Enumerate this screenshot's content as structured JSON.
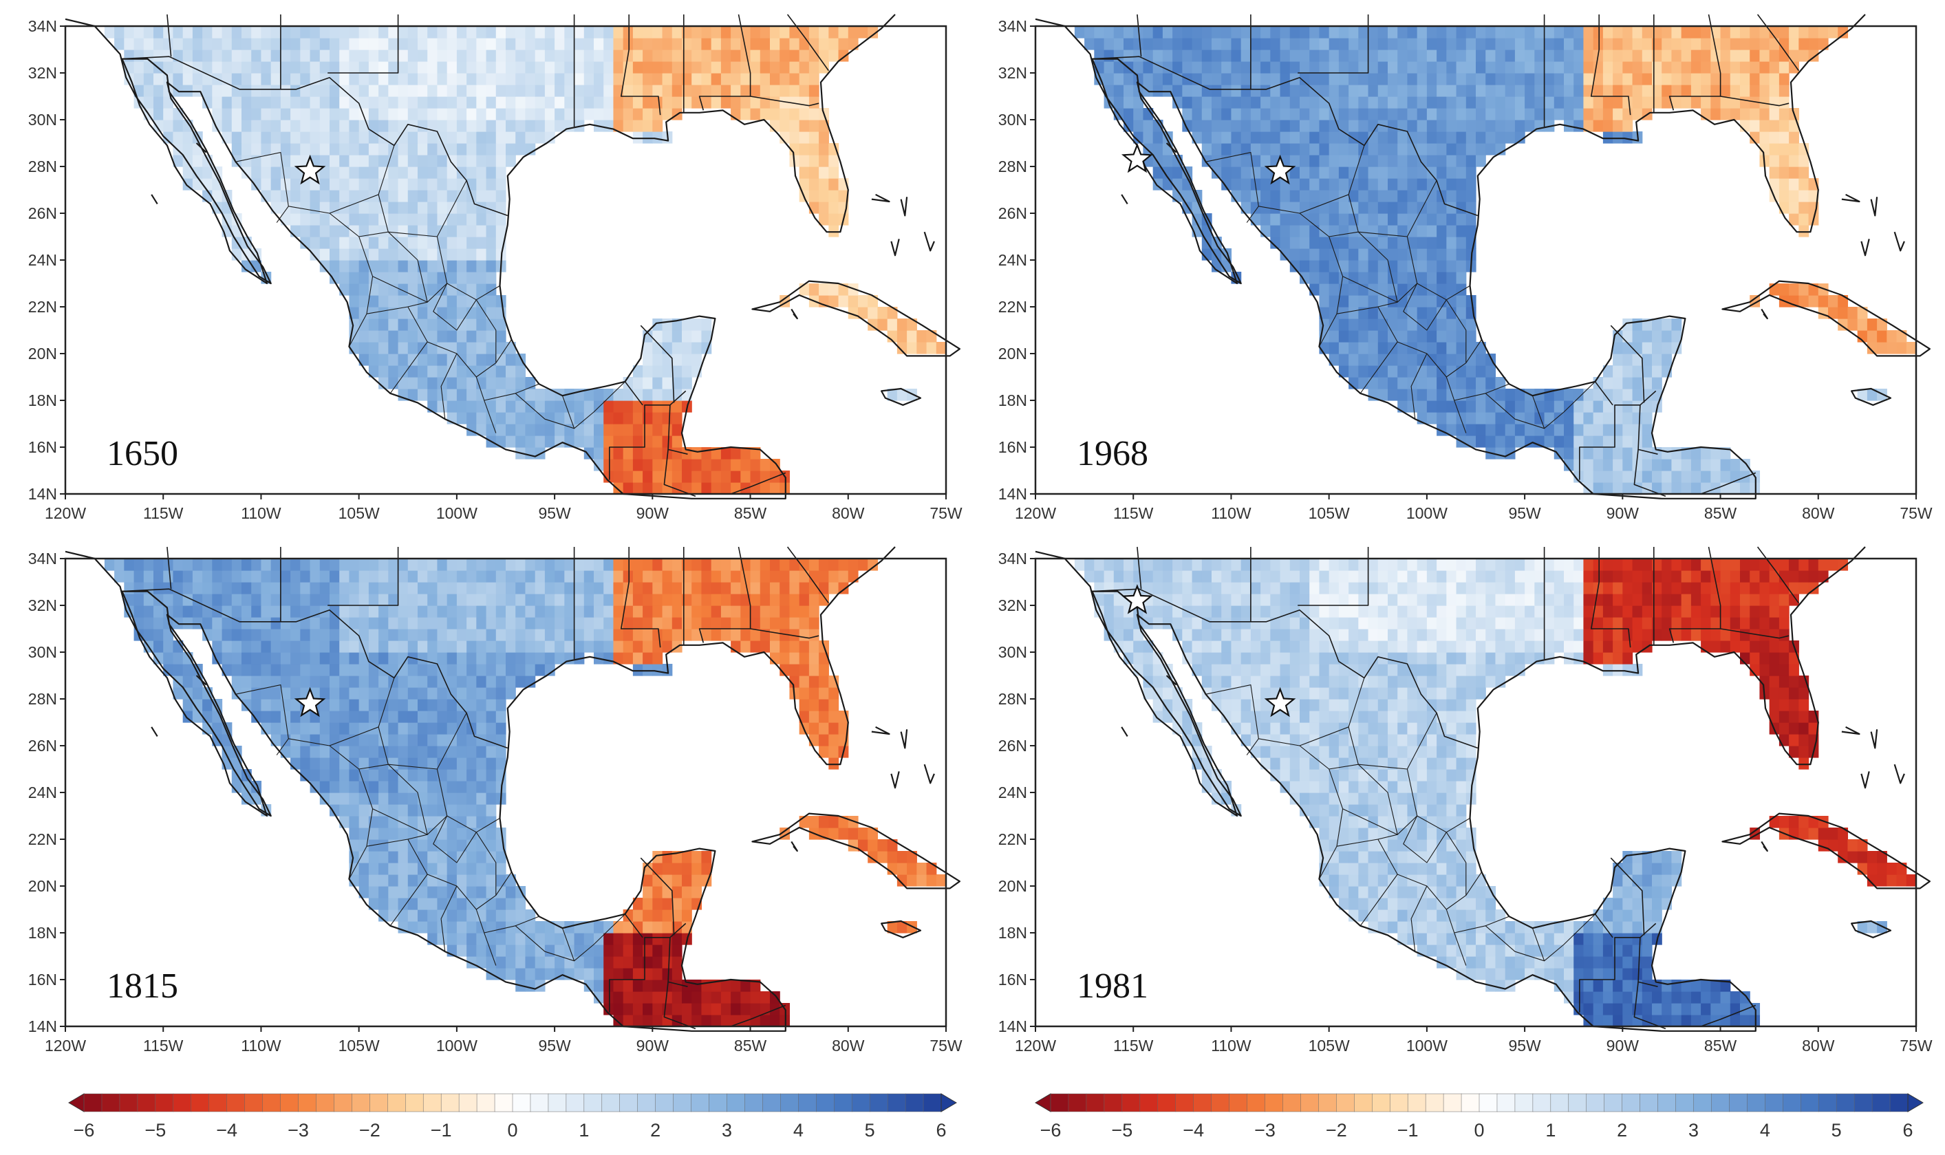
{
  "figure": {
    "description_type": "four-panel anomaly maps",
    "panels": [
      {
        "id": "p1650",
        "year": "1650",
        "anomaly": {
          "us_east": -2.0,
          "florida": -1.5,
          "mexico_north": 1.5,
          "mexico_center": 2.8,
          "yucatan": 1.5,
          "central_america": -3.5,
          "cuba": -1.5,
          "texas": 1.0
        }
      },
      {
        "id": "p1968",
        "year": "1968",
        "anomaly": {
          "us_east": -2.0,
          "florida": -1.5,
          "mexico_north": 3.8,
          "mexico_center": 4.0,
          "yucatan": 2.0,
          "central_america": 2.2,
          "cuba": -2.5,
          "texas": 3.5
        }
      },
      {
        "id": "p1815",
        "year": "1815",
        "anomaly": {
          "us_east": -3.0,
          "florida": -3.0,
          "mexico_north": 3.5,
          "mexico_center": 3.0,
          "yucatan": -3.0,
          "central_america": -5.5,
          "cuba": -3.0,
          "texas": 2.5
        }
      },
      {
        "id": "p1981",
        "year": "1981",
        "anomaly": {
          "us_east": -4.5,
          "florida": -5.0,
          "mexico_north": 1.8,
          "mexico_center": 2.0,
          "yucatan": 3.0,
          "central_america": 4.8,
          "cuba": -4.5,
          "texas": 1.0
        }
      }
    ],
    "latitude_ticks": [
      "14N",
      "16N",
      "18N",
      "20N",
      "22N",
      "24N",
      "26N",
      "28N",
      "30N",
      "32N",
      "34N"
    ],
    "longitude_ticks": [
      "120W",
      "115W",
      "110W",
      "105W",
      "100W",
      "95W",
      "90W",
      "85W",
      "80W",
      "75W"
    ],
    "lat_range": [
      14,
      34
    ],
    "lon_range": [
      -120,
      -75
    ],
    "markers": [
      {
        "panel": "p1650",
        "lon": -107.5,
        "lat": 27.8
      },
      {
        "panel": "p1968",
        "lon": -114.8,
        "lat": 28.3
      },
      {
        "panel": "p1968",
        "lon": -107.5,
        "lat": 27.8
      },
      {
        "panel": "p1815",
        "lon": -107.5,
        "lat": 27.8
      },
      {
        "panel": "p1981",
        "lon": -114.8,
        "lat": 32.2
      },
      {
        "panel": "p1981",
        "lon": -107.5,
        "lat": 27.8
      }
    ],
    "colorbar": {
      "min": -6,
      "max": 6,
      "step": 0.25,
      "tick_labels": [
        "−6",
        "−5",
        "−4",
        "−3",
        "−2",
        "−1",
        "0",
        "1",
        "2",
        "3",
        "4",
        "5",
        "6"
      ],
      "neg_color": "#b2182b",
      "mid_color": "#ffffff",
      "pos_color": "#2d5fa8"
    },
    "colors": {
      "ocean": "#ffffff",
      "coast": "#1a1a1a",
      "marker_fill": "#ffffff"
    }
  }
}
